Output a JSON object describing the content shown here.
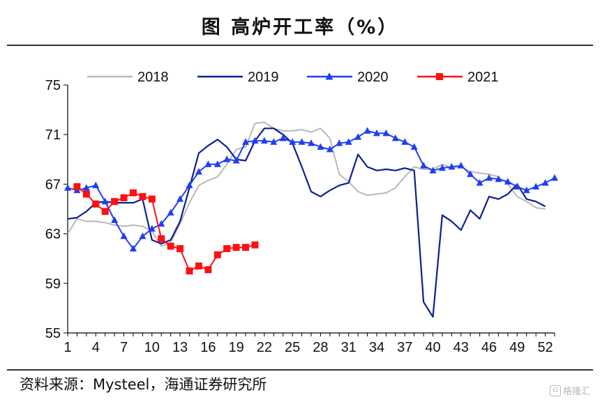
{
  "title": "图 高炉开工率（%）",
  "source": "资料来源：Mysteel，海通证券研究所",
  "watermark": "格隆汇",
  "chart_data": {
    "type": "line",
    "title": "图 高炉开工率（%）",
    "xlabel": "",
    "ylabel": "",
    "ylim": [
      55,
      75
    ],
    "xlim": [
      1,
      53
    ],
    "yticks": [
      55,
      59,
      63,
      67,
      71,
      75
    ],
    "xticks": [
      1,
      4,
      7,
      10,
      13,
      16,
      19,
      22,
      25,
      28,
      31,
      34,
      37,
      40,
      43,
      46,
      49,
      52
    ],
    "grid": false,
    "legend_position": "top",
    "series": [
      {
        "name": "2018",
        "color": "#b8b8b8",
        "marker": "none",
        "points": [
          [
            1,
            63.0
          ],
          [
            2,
            64.2
          ],
          [
            3,
            64.0
          ],
          [
            4,
            64.0
          ],
          [
            5,
            63.9
          ],
          [
            6,
            63.7
          ],
          [
            7,
            63.6
          ],
          [
            8,
            63.7
          ],
          [
            9,
            63.6
          ],
          [
            10,
            63.2
          ],
          [
            11,
            62.0
          ],
          [
            12,
            62.3
          ],
          [
            13,
            63.8
          ],
          [
            14,
            65.5
          ],
          [
            15,
            66.9
          ],
          [
            16,
            67.3
          ],
          [
            17,
            67.6
          ],
          [
            18,
            68.6
          ],
          [
            19,
            69.8
          ],
          [
            20,
            70.0
          ],
          [
            21,
            71.9
          ],
          [
            22,
            72.0
          ],
          [
            23,
            71.5
          ],
          [
            24,
            71.3
          ],
          [
            25,
            71.3
          ],
          [
            26,
            71.4
          ],
          [
            27,
            71.2
          ],
          [
            28,
            71.5
          ],
          [
            29,
            70.7
          ],
          [
            30,
            67.8
          ],
          [
            31,
            67.2
          ],
          [
            32,
            66.4
          ],
          [
            33,
            66.1
          ],
          [
            34,
            66.2
          ],
          [
            35,
            66.3
          ],
          [
            36,
            66.7
          ],
          [
            37,
            67.6
          ],
          [
            38,
            68.4
          ],
          [
            39,
            68.2
          ],
          [
            40,
            68.2
          ],
          [
            41,
            68.6
          ],
          [
            42,
            68.3
          ],
          [
            43,
            68.4
          ],
          [
            44,
            68.0
          ],
          [
            45,
            67.9
          ],
          [
            46,
            67.8
          ],
          [
            47,
            67.6
          ],
          [
            48,
            67.0
          ],
          [
            49,
            66.0
          ],
          [
            50,
            65.6
          ],
          [
            51,
            65.1
          ],
          [
            52,
            65.0
          ]
        ]
      },
      {
        "name": "2019",
        "color": "#0d1f8f",
        "marker": "none",
        "points": [
          [
            1,
            64.2
          ],
          [
            2,
            64.3
          ],
          [
            3,
            64.8
          ],
          [
            4,
            65.5
          ],
          [
            5,
            65.6
          ],
          [
            6,
            65.5
          ],
          [
            7,
            65.5
          ],
          [
            8,
            65.5
          ],
          [
            9,
            65.8
          ],
          [
            10,
            62.5
          ],
          [
            11,
            62.2
          ],
          [
            12,
            62.5
          ],
          [
            13,
            64.0
          ],
          [
            14,
            66.7
          ],
          [
            15,
            69.5
          ],
          [
            16,
            70.1
          ],
          [
            17,
            70.6
          ],
          [
            18,
            70.0
          ],
          [
            19,
            69.0
          ],
          [
            20,
            68.9
          ],
          [
            21,
            70.5
          ],
          [
            22,
            71.5
          ],
          [
            23,
            71.5
          ],
          [
            24,
            71.0
          ],
          [
            25,
            70.3
          ],
          [
            26,
            68.4
          ],
          [
            27,
            66.4
          ],
          [
            28,
            66.0
          ],
          [
            29,
            66.5
          ],
          [
            30,
            66.9
          ],
          [
            31,
            67.1
          ],
          [
            32,
            69.4
          ],
          [
            33,
            68.4
          ],
          [
            34,
            68.1
          ],
          [
            35,
            68.2
          ],
          [
            36,
            68.1
          ],
          [
            37,
            68.3
          ],
          [
            38,
            68.1
          ],
          [
            39,
            57.5
          ],
          [
            40,
            56.3
          ],
          [
            41,
            64.5
          ],
          [
            42,
            64.0
          ],
          [
            43,
            63.3
          ],
          [
            44,
            64.9
          ],
          [
            45,
            64.2
          ],
          [
            46,
            66.0
          ],
          [
            47,
            65.8
          ],
          [
            48,
            66.2
          ],
          [
            49,
            67.0
          ],
          [
            50,
            65.8
          ],
          [
            51,
            65.6
          ],
          [
            52,
            65.2
          ]
        ]
      },
      {
        "name": "2020",
        "color": "#1f3ef5",
        "marker": "triangle",
        "points": [
          [
            1,
            66.7
          ],
          [
            2,
            66.5
          ],
          [
            3,
            66.7
          ],
          [
            4,
            66.9
          ],
          [
            5,
            65.6
          ],
          [
            6,
            64.1
          ],
          [
            7,
            62.8
          ],
          [
            8,
            61.8
          ],
          [
            9,
            62.8
          ],
          [
            10,
            63.4
          ],
          [
            11,
            63.8
          ],
          [
            12,
            64.7
          ],
          [
            13,
            65.8
          ],
          [
            14,
            66.9
          ],
          [
            15,
            68.0
          ],
          [
            16,
            68.6
          ],
          [
            17,
            68.6
          ],
          [
            18,
            69.0
          ],
          [
            19,
            68.9
          ],
          [
            20,
            70.4
          ],
          [
            21,
            70.5
          ],
          [
            22,
            70.5
          ],
          [
            23,
            70.4
          ],
          [
            24,
            70.7
          ],
          [
            25,
            70.4
          ],
          [
            26,
            70.4
          ],
          [
            27,
            70.3
          ],
          [
            28,
            70.0
          ],
          [
            29,
            69.8
          ],
          [
            30,
            70.3
          ],
          [
            31,
            70.4
          ],
          [
            32,
            70.8
          ],
          [
            33,
            71.3
          ],
          [
            34,
            71.1
          ],
          [
            35,
            71.1
          ],
          [
            36,
            70.7
          ],
          [
            37,
            70.4
          ],
          [
            38,
            70.0
          ],
          [
            39,
            68.5
          ],
          [
            40,
            68.1
          ],
          [
            41,
            68.3
          ],
          [
            42,
            68.4
          ],
          [
            43,
            68.5
          ],
          [
            44,
            67.8
          ],
          [
            45,
            67.1
          ],
          [
            46,
            67.5
          ],
          [
            47,
            67.4
          ],
          [
            48,
            67.2
          ],
          [
            49,
            66.8
          ],
          [
            50,
            66.5
          ],
          [
            51,
            66.8
          ],
          [
            52,
            67.1
          ],
          [
            53,
            67.5
          ]
        ]
      },
      {
        "name": "2021",
        "color": "#ff1010",
        "marker": "square",
        "points": [
          [
            2,
            66.8
          ],
          [
            3,
            66.2
          ],
          [
            4,
            65.4
          ],
          [
            5,
            64.8
          ],
          [
            6,
            65.6
          ],
          [
            7,
            65.9
          ],
          [
            8,
            66.3
          ],
          [
            9,
            66.0
          ],
          [
            10,
            65.8
          ],
          [
            11,
            62.6
          ],
          [
            12,
            62.0
          ],
          [
            13,
            61.8
          ],
          [
            14,
            60.0
          ],
          [
            15,
            60.4
          ],
          [
            16,
            60.1
          ],
          [
            17,
            61.3
          ],
          [
            18,
            61.8
          ],
          [
            19,
            61.9
          ],
          [
            20,
            61.9
          ],
          [
            21,
            62.1
          ]
        ]
      }
    ]
  }
}
